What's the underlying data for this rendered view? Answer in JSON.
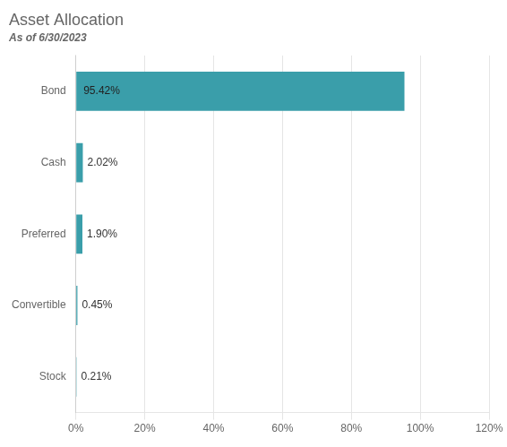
{
  "chart_data": {
    "type": "bar",
    "orientation": "horizontal",
    "title": "Asset Allocation",
    "subtitle": "As of 6/30/2023",
    "categories": [
      "Bond",
      "Cash",
      "Preferred",
      "Convertible",
      "Stock"
    ],
    "values": [
      95.42,
      2.02,
      1.9,
      0.45,
      0.21
    ],
    "value_labels": [
      "95.42%",
      "2.02%",
      "1.90%",
      "0.45%",
      "0.21%"
    ],
    "data_labels": true,
    "color": "#3a9eaa",
    "xlim": [
      0,
      120
    ],
    "xticks": [
      {
        "value": 0,
        "label": "0%"
      },
      {
        "value": 20,
        "label": "20%"
      },
      {
        "value": 40,
        "label": "40%"
      },
      {
        "value": 60,
        "label": "60%"
      },
      {
        "value": 80,
        "label": "80%"
      },
      {
        "value": 100,
        "label": "100%"
      },
      {
        "value": 120,
        "label": "120%"
      }
    ],
    "grid": true
  }
}
